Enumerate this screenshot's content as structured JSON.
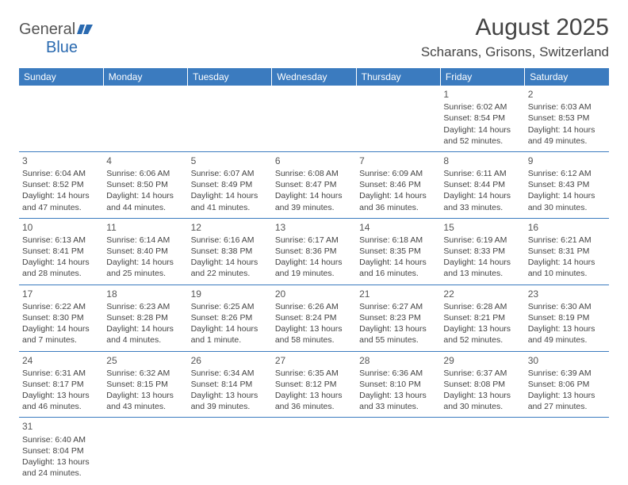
{
  "logo": {
    "line1": "General",
    "line2": "Blue"
  },
  "title": "August 2025",
  "location": "Scharans, Grisons, Switzerland",
  "colors": {
    "header_bg": "#3b7bbf",
    "header_text": "#ffffff",
    "border": "#3b7bbf",
    "text": "#444444",
    "logo_gray": "#555555",
    "logo_blue": "#2a6ab0"
  },
  "day_headers": [
    "Sunday",
    "Monday",
    "Tuesday",
    "Wednesday",
    "Thursday",
    "Friday",
    "Saturday"
  ],
  "weeks": [
    [
      null,
      null,
      null,
      null,
      null,
      {
        "n": "1",
        "sr": "Sunrise: 6:02 AM",
        "ss": "Sunset: 8:54 PM",
        "d1": "Daylight: 14 hours",
        "d2": "and 52 minutes."
      },
      {
        "n": "2",
        "sr": "Sunrise: 6:03 AM",
        "ss": "Sunset: 8:53 PM",
        "d1": "Daylight: 14 hours",
        "d2": "and 49 minutes."
      }
    ],
    [
      {
        "n": "3",
        "sr": "Sunrise: 6:04 AM",
        "ss": "Sunset: 8:52 PM",
        "d1": "Daylight: 14 hours",
        "d2": "and 47 minutes."
      },
      {
        "n": "4",
        "sr": "Sunrise: 6:06 AM",
        "ss": "Sunset: 8:50 PM",
        "d1": "Daylight: 14 hours",
        "d2": "and 44 minutes."
      },
      {
        "n": "5",
        "sr": "Sunrise: 6:07 AM",
        "ss": "Sunset: 8:49 PM",
        "d1": "Daylight: 14 hours",
        "d2": "and 41 minutes."
      },
      {
        "n": "6",
        "sr": "Sunrise: 6:08 AM",
        "ss": "Sunset: 8:47 PM",
        "d1": "Daylight: 14 hours",
        "d2": "and 39 minutes."
      },
      {
        "n": "7",
        "sr": "Sunrise: 6:09 AM",
        "ss": "Sunset: 8:46 PM",
        "d1": "Daylight: 14 hours",
        "d2": "and 36 minutes."
      },
      {
        "n": "8",
        "sr": "Sunrise: 6:11 AM",
        "ss": "Sunset: 8:44 PM",
        "d1": "Daylight: 14 hours",
        "d2": "and 33 minutes."
      },
      {
        "n": "9",
        "sr": "Sunrise: 6:12 AM",
        "ss": "Sunset: 8:43 PM",
        "d1": "Daylight: 14 hours",
        "d2": "and 30 minutes."
      }
    ],
    [
      {
        "n": "10",
        "sr": "Sunrise: 6:13 AM",
        "ss": "Sunset: 8:41 PM",
        "d1": "Daylight: 14 hours",
        "d2": "and 28 minutes."
      },
      {
        "n": "11",
        "sr": "Sunrise: 6:14 AM",
        "ss": "Sunset: 8:40 PM",
        "d1": "Daylight: 14 hours",
        "d2": "and 25 minutes."
      },
      {
        "n": "12",
        "sr": "Sunrise: 6:16 AM",
        "ss": "Sunset: 8:38 PM",
        "d1": "Daylight: 14 hours",
        "d2": "and 22 minutes."
      },
      {
        "n": "13",
        "sr": "Sunrise: 6:17 AM",
        "ss": "Sunset: 8:36 PM",
        "d1": "Daylight: 14 hours",
        "d2": "and 19 minutes."
      },
      {
        "n": "14",
        "sr": "Sunrise: 6:18 AM",
        "ss": "Sunset: 8:35 PM",
        "d1": "Daylight: 14 hours",
        "d2": "and 16 minutes."
      },
      {
        "n": "15",
        "sr": "Sunrise: 6:19 AM",
        "ss": "Sunset: 8:33 PM",
        "d1": "Daylight: 14 hours",
        "d2": "and 13 minutes."
      },
      {
        "n": "16",
        "sr": "Sunrise: 6:21 AM",
        "ss": "Sunset: 8:31 PM",
        "d1": "Daylight: 14 hours",
        "d2": "and 10 minutes."
      }
    ],
    [
      {
        "n": "17",
        "sr": "Sunrise: 6:22 AM",
        "ss": "Sunset: 8:30 PM",
        "d1": "Daylight: 14 hours",
        "d2": "and 7 minutes."
      },
      {
        "n": "18",
        "sr": "Sunrise: 6:23 AM",
        "ss": "Sunset: 8:28 PM",
        "d1": "Daylight: 14 hours",
        "d2": "and 4 minutes."
      },
      {
        "n": "19",
        "sr": "Sunrise: 6:25 AM",
        "ss": "Sunset: 8:26 PM",
        "d1": "Daylight: 14 hours",
        "d2": "and 1 minute."
      },
      {
        "n": "20",
        "sr": "Sunrise: 6:26 AM",
        "ss": "Sunset: 8:24 PM",
        "d1": "Daylight: 13 hours",
        "d2": "and 58 minutes."
      },
      {
        "n": "21",
        "sr": "Sunrise: 6:27 AM",
        "ss": "Sunset: 8:23 PM",
        "d1": "Daylight: 13 hours",
        "d2": "and 55 minutes."
      },
      {
        "n": "22",
        "sr": "Sunrise: 6:28 AM",
        "ss": "Sunset: 8:21 PM",
        "d1": "Daylight: 13 hours",
        "d2": "and 52 minutes."
      },
      {
        "n": "23",
        "sr": "Sunrise: 6:30 AM",
        "ss": "Sunset: 8:19 PM",
        "d1": "Daylight: 13 hours",
        "d2": "and 49 minutes."
      }
    ],
    [
      {
        "n": "24",
        "sr": "Sunrise: 6:31 AM",
        "ss": "Sunset: 8:17 PM",
        "d1": "Daylight: 13 hours",
        "d2": "and 46 minutes."
      },
      {
        "n": "25",
        "sr": "Sunrise: 6:32 AM",
        "ss": "Sunset: 8:15 PM",
        "d1": "Daylight: 13 hours",
        "d2": "and 43 minutes."
      },
      {
        "n": "26",
        "sr": "Sunrise: 6:34 AM",
        "ss": "Sunset: 8:14 PM",
        "d1": "Daylight: 13 hours",
        "d2": "and 39 minutes."
      },
      {
        "n": "27",
        "sr": "Sunrise: 6:35 AM",
        "ss": "Sunset: 8:12 PM",
        "d1": "Daylight: 13 hours",
        "d2": "and 36 minutes."
      },
      {
        "n": "28",
        "sr": "Sunrise: 6:36 AM",
        "ss": "Sunset: 8:10 PM",
        "d1": "Daylight: 13 hours",
        "d2": "and 33 minutes."
      },
      {
        "n": "29",
        "sr": "Sunrise: 6:37 AM",
        "ss": "Sunset: 8:08 PM",
        "d1": "Daylight: 13 hours",
        "d2": "and 30 minutes."
      },
      {
        "n": "30",
        "sr": "Sunrise: 6:39 AM",
        "ss": "Sunset: 8:06 PM",
        "d1": "Daylight: 13 hours",
        "d2": "and 27 minutes."
      }
    ],
    [
      {
        "n": "31",
        "sr": "Sunrise: 6:40 AM",
        "ss": "Sunset: 8:04 PM",
        "d1": "Daylight: 13 hours",
        "d2": "and 24 minutes."
      },
      null,
      null,
      null,
      null,
      null,
      null
    ]
  ]
}
